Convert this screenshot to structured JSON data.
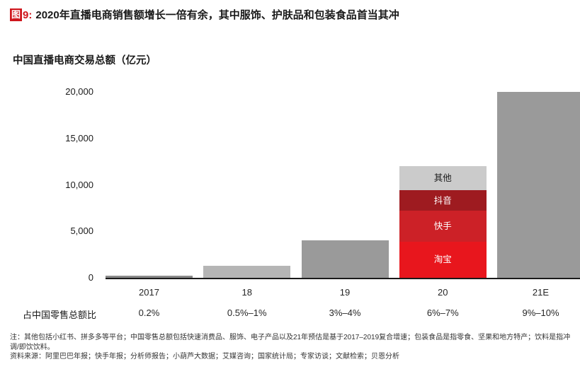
{
  "figure": {
    "tag_box": "图",
    "tag_num": "9:",
    "title": "2020年直播电商销售额增长一倍有余，其中服饰、护肤品和包装食品首当其冲",
    "accent_color": "#cf161d"
  },
  "chart_data": {
    "type": "bar",
    "title": "中国直播电商交易总额（亿元）",
    "categories": [
      "2017",
      "18",
      "19",
      "20",
      "21E"
    ],
    "values": [
      200,
      1300,
      4000,
      12000,
      20000
    ],
    "ylim": [
      0,
      20000
    ],
    "yticks": [
      0,
      5000,
      10000,
      15000,
      20000
    ],
    "ytick_labels": [
      "0",
      "5,000",
      "10,000",
      "15,000",
      "20,000"
    ],
    "grid": false,
    "legend": "inside-bar-labels",
    "bars": [
      {
        "category": "2017",
        "value": 200,
        "color": "#8a8a8a"
      },
      {
        "category": "18",
        "value": 1300,
        "color": "#b5b5b5"
      },
      {
        "category": "19",
        "value": 4000,
        "color": "#9a9a9a"
      },
      {
        "category": "20",
        "total": 12000,
        "segments": [
          {
            "label": "淘宝",
            "value": 3900,
            "color": "#e8161d",
            "text_color": "#ffffff"
          },
          {
            "label": "快手",
            "value": 3300,
            "color": "#cc2127",
            "text_color": "#ffffff"
          },
          {
            "label": "抖音",
            "value": 2200,
            "color": "#9e1b20",
            "text_color": "#ffffff"
          },
          {
            "label": "其他",
            "value": 2600,
            "color": "#cbcbcb",
            "text_color": "#1a1a1a"
          }
        ]
      },
      {
        "category": "21E",
        "value": 20000,
        "color": "#9a9a9a"
      }
    ],
    "secondary_row": {
      "label": "占中国零售总额比",
      "values": [
        "0.2%",
        "0.5%–1%",
        "3%–4%",
        "6%–7%",
        "9%–10%"
      ]
    },
    "axis_color": "#1a1a1a"
  },
  "notes": {
    "note": "注：其他包括小红书、拼多多等平台；中国零售总额包括快速消费品、服饰、电子产品以及21年预估是基于2017–2019复合增速；包装食品是指零食、坚果和地方特产；饮料是指冲调/即饮饮料。",
    "source": "资料来源：阿里巴巴年报；快手年报；分析师报告；小葫芦大数据；艾媒咨询；国家统计局；专家访谈；文献检索；贝恩分析"
  }
}
